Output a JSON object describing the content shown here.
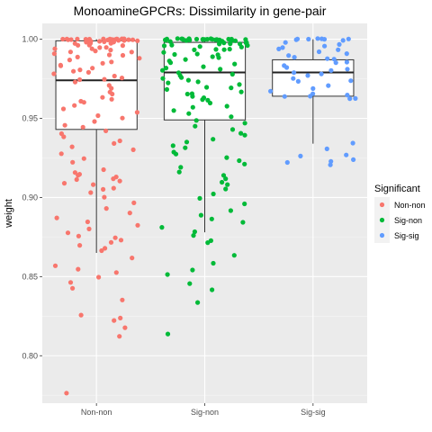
{
  "chart_data": {
    "type": "boxplot-jitter",
    "title": "MonoamineGPCRs: Dissimilarity in gene-pair",
    "xlabel": "",
    "ylabel": "weight",
    "ylim": [
      0.77,
      1.01
    ],
    "yticks": [
      0.8,
      0.85,
      0.9,
      0.95,
      1.0
    ],
    "ytick_labels": [
      "0.80",
      "0.85",
      "0.90",
      "0.95",
      "1.00"
    ],
    "categories": [
      "Non-non",
      "Sig-non",
      "Sig-sig"
    ],
    "grid": true,
    "legend": {
      "title": "Significant",
      "position": "right",
      "entries": [
        {
          "label": "Non-non",
          "color": "#F8766D"
        },
        {
          "label": "Sig-non",
          "color": "#00BA38"
        },
        {
          "label": "Sig-sig",
          "color": "#619CFF"
        }
      ]
    },
    "boxes": [
      {
        "category": "Non-non",
        "lower_whisker": 0.865,
        "q1": 0.943,
        "median": 0.974,
        "q3": 0.999,
        "upper_whisker": 1.0
      },
      {
        "category": "Sig-non",
        "lower_whisker": 0.878,
        "q1": 0.949,
        "median": 0.979,
        "q3": 0.998,
        "upper_whisker": 1.0
      },
      {
        "category": "Sig-sig",
        "lower_whisker": 0.934,
        "q1": 0.964,
        "median": 0.979,
        "q3": 0.987,
        "upper_whisker": 1.0
      }
    ],
    "series": [
      {
        "name": "Non-non",
        "color": "#F8766D",
        "points": [
          1.0,
          1.0,
          1.0,
          1.0,
          1.0,
          1.0,
          1.0,
          1.0,
          1.0,
          1.0,
          1.0,
          1.0,
          1.0,
          1.0,
          1.0,
          1.0,
          1.0,
          1.0,
          0.999,
          0.999,
          0.999,
          0.999,
          0.999,
          0.999,
          0.998,
          0.998,
          0.998,
          0.998,
          0.998,
          0.997,
          0.997,
          0.997,
          0.996,
          0.996,
          0.996,
          0.995,
          0.995,
          0.994,
          0.994,
          0.993,
          0.993,
          0.992,
          0.992,
          0.991,
          0.99,
          0.99,
          0.989,
          0.988,
          0.987,
          0.986,
          0.985,
          0.984,
          0.983,
          0.982,
          0.981,
          0.98,
          0.979,
          0.978,
          0.977,
          0.976,
          0.975,
          0.974,
          0.973,
          0.971,
          0.969,
          0.967,
          0.965,
          0.963,
          0.962,
          0.961,
          0.96,
          0.958,
          0.956,
          0.954,
          0.952,
          0.95,
          0.948,
          0.946,
          0.944,
          0.942,
          0.94,
          0.938,
          0.936,
          0.934,
          0.932,
          0.93,
          0.928,
          0.925,
          0.922,
          0.918,
          0.916,
          0.915,
          0.914,
          0.913,
          0.912,
          0.911,
          0.91,
          0.909,
          0.908,
          0.906,
          0.905,
          0.903,
          0.9,
          0.897,
          0.893,
          0.89,
          0.887,
          0.885,
          0.882,
          0.88,
          0.878,
          0.876,
          0.875,
          0.873,
          0.872,
          0.87,
          0.868,
          0.866,
          0.862,
          0.857,
          0.855,
          0.853,
          0.85,
          0.846,
          0.843,
          0.835,
          0.826,
          0.824,
          0.822,
          0.818,
          0.812,
          0.776
        ]
      },
      {
        "name": "Sig-non",
        "color": "#00BA38",
        "points": [
          1.0,
          1.0,
          1.0,
          1.0,
          1.0,
          1.0,
          1.0,
          1.0,
          1.0,
          1.0,
          1.0,
          1.0,
          1.0,
          1.0,
          1.0,
          1.0,
          1.0,
          1.0,
          1.0,
          1.0,
          1.0,
          0.999,
          0.999,
          0.999,
          0.999,
          0.999,
          0.999,
          0.999,
          0.998,
          0.998,
          0.998,
          0.998,
          0.997,
          0.997,
          0.997,
          0.996,
          0.996,
          0.996,
          0.995,
          0.995,
          0.994,
          0.994,
          0.993,
          0.993,
          0.992,
          0.991,
          0.99,
          0.99,
          0.989,
          0.988,
          0.987,
          0.986,
          0.985,
          0.984,
          0.983,
          0.982,
          0.981,
          0.98,
          0.979,
          0.978,
          0.977,
          0.976,
          0.975,
          0.974,
          0.973,
          0.972,
          0.971,
          0.97,
          0.969,
          0.968,
          0.967,
          0.966,
          0.965,
          0.964,
          0.963,
          0.962,
          0.961,
          0.96,
          0.958,
          0.957,
          0.955,
          0.953,
          0.951,
          0.949,
          0.947,
          0.945,
          0.943,
          0.941,
          0.939,
          0.937,
          0.935,
          0.933,
          0.931,
          0.929,
          0.927,
          0.925,
          0.923,
          0.921,
          0.919,
          0.916,
          0.914,
          0.912,
          0.91,
          0.908,
          0.905,
          0.902,
          0.899,
          0.896,
          0.892,
          0.889,
          0.886,
          0.884,
          0.881,
          0.878,
          0.876,
          0.873,
          0.871,
          0.863,
          0.858,
          0.854,
          0.851,
          0.846,
          0.842,
          0.834,
          0.814
        ]
      },
      {
        "name": "Sig-sig",
        "color": "#619CFF",
        "points": [
          1.0,
          1.0,
          1.0,
          1.0,
          1.0,
          1.0,
          1.0,
          0.999,
          0.998,
          0.997,
          0.996,
          0.995,
          0.994,
          0.993,
          0.992,
          0.991,
          0.99,
          0.989,
          0.988,
          0.987,
          0.986,
          0.985,
          0.983,
          0.982,
          0.981,
          0.98,
          0.979,
          0.978,
          0.977,
          0.975,
          0.974,
          0.973,
          0.971,
          0.969,
          0.967,
          0.966,
          0.965,
          0.964,
          0.964,
          0.963,
          0.962,
          0.934,
          0.931,
          0.927,
          0.926,
          0.924,
          0.923,
          0.922,
          0.921
        ]
      }
    ]
  }
}
